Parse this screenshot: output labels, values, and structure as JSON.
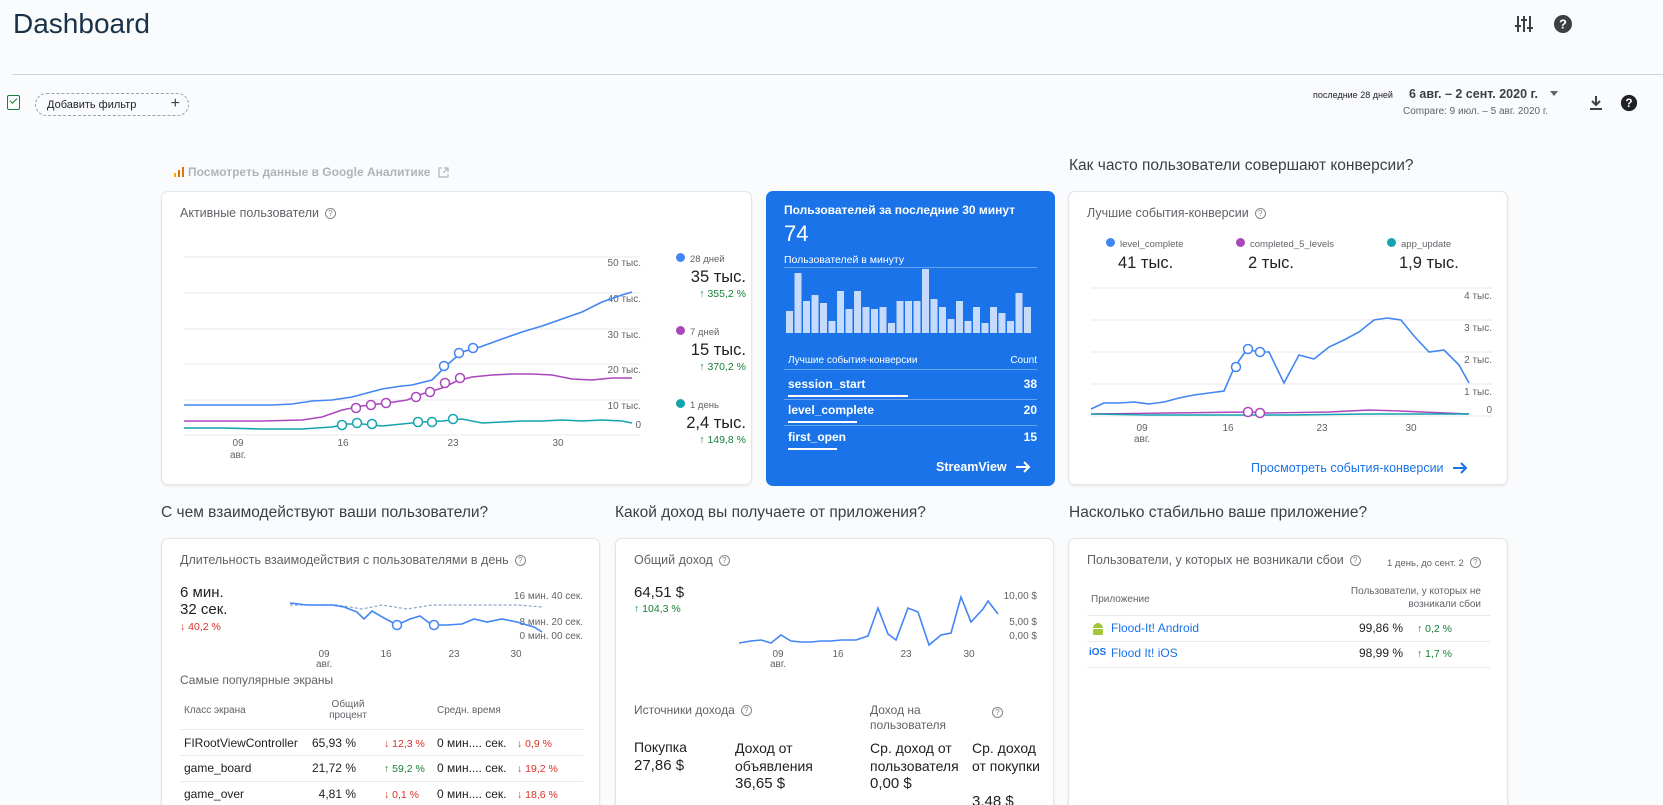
{
  "header": {
    "title": "Dashboard",
    "filter_label": "Добавить фильтр",
    "date_prefix": "последние 28 дней",
    "date_range": "6 авг. – 2 сент. 2020 г.",
    "compare": "Compare: 9 июл. – 5 авг. 2020 г."
  },
  "ga_link": "Посмотреть данные в Google Аналитике",
  "section_conv": "Как часто пользователи совершают конверсии?",
  "section_engage": "С чем взаимодействуют ваши пользователи?",
  "section_revenue": "Какой доход вы получаете от приложения?",
  "section_stability": "Насколько стабильно ваше приложение?",
  "active_users": {
    "title": "Активные пользователи",
    "y_ticks": [
      "50 тыс.",
      "40 тыс.",
      "30 тыс.",
      "20 тыс.",
      "10 тыс.",
      "0"
    ],
    "x_ticks": [
      "09",
      "16",
      "23",
      "30"
    ],
    "x_month": "авг.",
    "legend": [
      {
        "label": "28 дней",
        "value": "35 тыс.",
        "change": "355,2 %",
        "color": "#4285f4"
      },
      {
        "label": "7 дней",
        "value": "15 тыс.",
        "change": "370,2 %",
        "color": "#ab47bc"
      },
      {
        "label": "1 день",
        "value": "2,4 тыс.",
        "change": "149,8 %",
        "color": "#12a4af"
      }
    ]
  },
  "realtime": {
    "title": "Пользователей за последние 30 минут",
    "value": "74",
    "per_minute": "Пользователей в минуту",
    "events_header": "Лучшие события-конверсии",
    "count_header": "Count",
    "events": [
      {
        "name": "session_start",
        "count": "38",
        "fill": 0.96
      },
      {
        "name": "level_complete",
        "count": "20",
        "fill": 0.55
      },
      {
        "name": "first_open",
        "count": "15",
        "fill": 0.39
      }
    ],
    "link": "StreamView"
  },
  "conversions": {
    "title": "Лучшие события-конверсии",
    "legend": [
      {
        "label": "level_complete",
        "value": "41 тыс.",
        "color": "#4285f4"
      },
      {
        "label": "completed_5_levels",
        "value": "2 тыс.",
        "color": "#ab47bc"
      },
      {
        "label": "app_update",
        "value": "1,9 тыс.",
        "color": "#12a4af"
      }
    ],
    "y_ticks": [
      "4 тыс.",
      "3 тыс.",
      "2 тыс.",
      "1 тыс.",
      "0"
    ],
    "x_ticks": [
      "09",
      "16",
      "23",
      "30"
    ],
    "x_month": "авг.",
    "link": "Просмотреть события-конверсии"
  },
  "engagement": {
    "title": "Длительность взаимодействия с пользователями в день",
    "value_line1": "6 мин.",
    "value_line2": "32 сек.",
    "change": "40,2 %",
    "y_ticks": [
      "16 мин. 40 сек.",
      "8 мин. 20 сек.",
      "0 мин. 00 сек."
    ],
    "x_ticks": [
      "09",
      "16",
      "23",
      "30"
    ],
    "x_month": "авг.",
    "screens_title": "Самые популярные экраны",
    "col_class": "Класс экрана",
    "col_percent": "Общий процент",
    "col_time": "Средн. время",
    "rows": [
      {
        "name": "FIRootViewController",
        "pct": "65,93 %",
        "pct_ch": "12,3 %",
        "pct_up": false,
        "time": "0 мин.... сек.",
        "time_ch": "0,9 %",
        "time_up": false
      },
      {
        "name": "game_board",
        "pct": "21,72 %",
        "pct_ch": "59,2 %",
        "pct_up": true,
        "time": "0 мин.... сек.",
        "time_ch": "19,2 %",
        "time_up": false
      },
      {
        "name": "game_over",
        "pct": "4,81 %",
        "pct_ch": "0,1 %",
        "pct_up": false,
        "time": "0 мин.... сек.",
        "time_ch": "18,6 %",
        "time_up": false
      }
    ]
  },
  "revenue": {
    "title": "Общий доход",
    "value": "64,51 $",
    "change": "104,3 %",
    "y_ticks": [
      "10,00 $",
      "5,00 $",
      "0,00 $"
    ],
    "x_ticks": [
      "09",
      "16",
      "23",
      "30"
    ],
    "x_month": "авг.",
    "sources_title": "Источники дохода",
    "arpu_title": "Доход на пользователя",
    "purchase_label": "Покупка",
    "purchase_value": "27,86 $",
    "ads_label": "Доход от объявления",
    "ads_value": "36,65 $",
    "arpu_label": "Ср. доход от пользователя",
    "arpu_value": "0,00 $",
    "arppu_label": "Ср. доход от покупки",
    "arppu_value": "3,48 $"
  },
  "stability": {
    "title": "Пользователи, у которых не возникали сбои",
    "period": "1 день, до сент. 2",
    "col_app": "Приложение",
    "col_users": "Пользователи, у которых не возникали сбои",
    "rows": [
      {
        "platform": "android",
        "name": "Flood-It! Android",
        "value": "99,86 %",
        "change": "0,2 %"
      },
      {
        "platform": "ios",
        "name": "Flood It! iOS",
        "value": "98,99 %",
        "change": "1,7 %"
      }
    ],
    "ios_label": "iOS"
  }
}
